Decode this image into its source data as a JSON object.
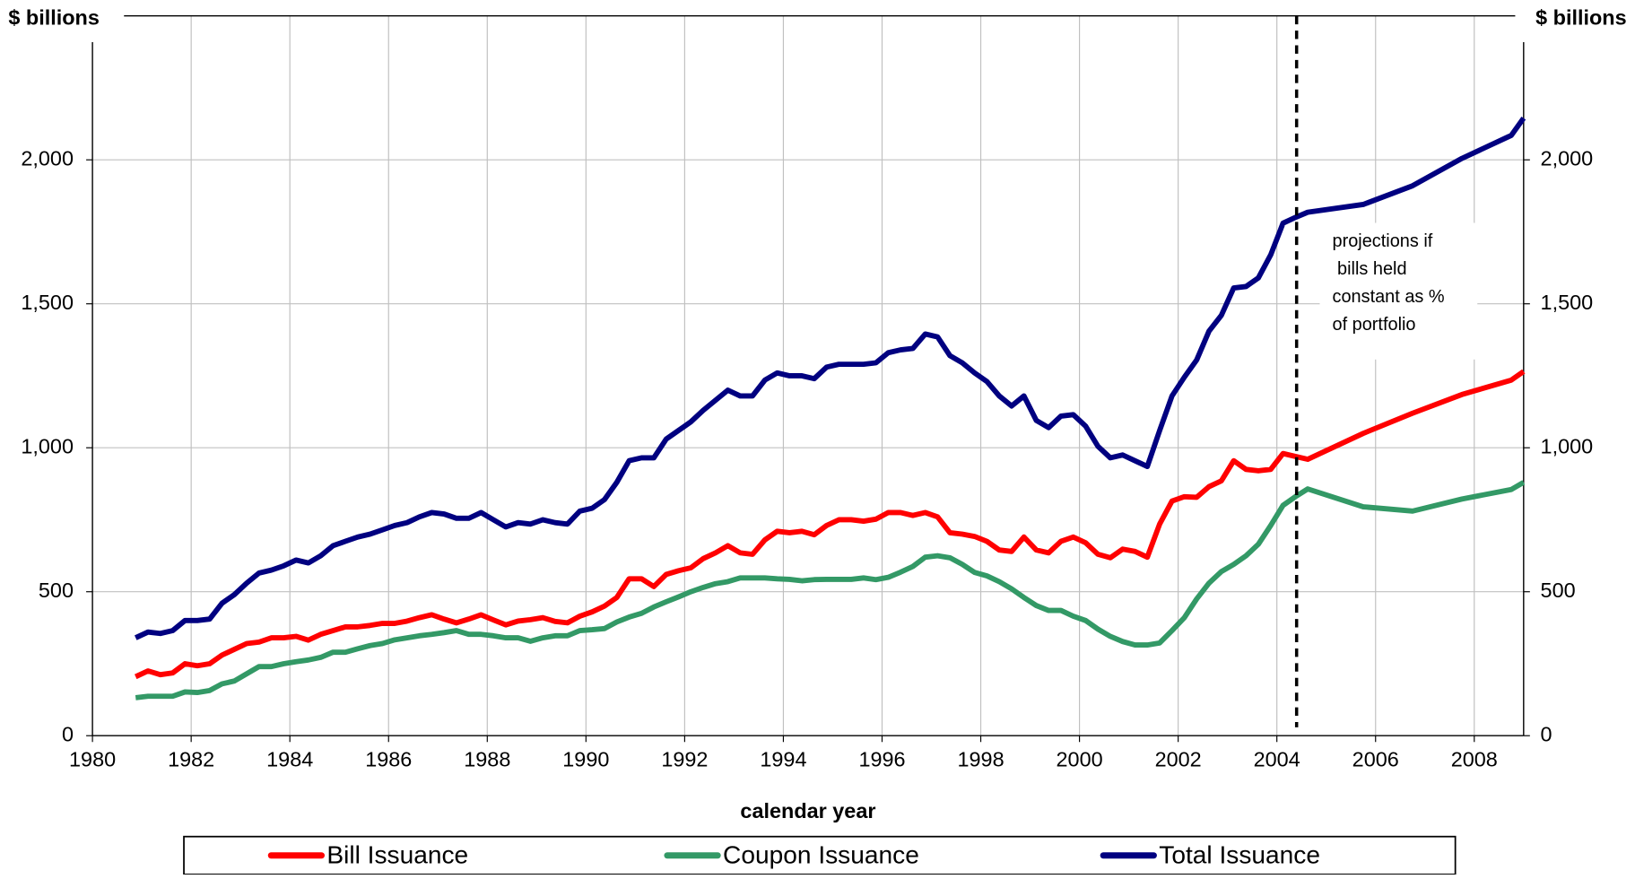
{
  "chart_data": {
    "type": "line",
    "x_label": "calendar year",
    "y_label": "$ billions",
    "y2_label": "$ billions",
    "xlim": [
      1980,
      2009
    ],
    "xticks": [
      1980,
      1982,
      1984,
      1986,
      1988,
      1990,
      1992,
      1994,
      1996,
      1998,
      2000,
      2002,
      2004,
      2006,
      2008
    ],
    "ylim": [
      0,
      2500
    ],
    "yticks": [
      0,
      {
        "value": 500,
        "label": "500"
      },
      {
        "value": 1000,
        "label": "1,000"
      },
      {
        "value": 1500,
        "label": "1,500"
      },
      {
        "value": 2000,
        "label": "2,000"
      }
    ],
    "y2lim": [
      0,
      2500
    ],
    "y2ticks": [
      0,
      {
        "value": 500,
        "label": "500"
      },
      {
        "value": 1000,
        "label": "1,000"
      },
      {
        "value": 1500,
        "label": "1,500"
      },
      {
        "value": 2000,
        "label": "2,000"
      }
    ],
    "grid": true,
    "legend": "bottom",
    "projection_start": 2004.4,
    "annotation": [
      "projections if",
      " bills held",
      "constant as %",
      "of portfolio"
    ],
    "x": [
      1980.875,
      1981.125,
      1981.375,
      1981.625,
      1981.875,
      1982.125,
      1982.375,
      1982.625,
      1982.875,
      1983.125,
      1983.375,
      1983.625,
      1983.875,
      1984.125,
      1984.375,
      1984.625,
      1984.875,
      1985.125,
      1985.375,
      1985.625,
      1985.875,
      1986.125,
      1986.375,
      1986.625,
      1986.875,
      1987.125,
      1987.375,
      1987.625,
      1987.875,
      1988.125,
      1988.375,
      1988.625,
      1988.875,
      1989.125,
      1989.375,
      1989.625,
      1989.875,
      1990.125,
      1990.375,
      1990.625,
      1990.875,
      1991.125,
      1991.375,
      1991.625,
      1991.875,
      1992.125,
      1992.375,
      1992.625,
      1992.875,
      1993.125,
      1993.375,
      1993.625,
      1993.875,
      1994.125,
      1994.375,
      1994.625,
      1994.875,
      1995.125,
      1995.375,
      1995.625,
      1995.875,
      1996.125,
      1996.375,
      1996.625,
      1996.875,
      1997.125,
      1997.375,
      1997.625,
      1997.875,
      1998.125,
      1998.375,
      1998.625,
      1998.875,
      1999.125,
      1999.375,
      1999.625,
      1999.875,
      2000.125,
      2000.375,
      2000.625,
      2000.875,
      2001.125,
      2001.375,
      2001.625,
      2001.875,
      2002.125,
      2002.375,
      2002.625,
      2002.875,
      2003.125,
      2003.375,
      2003.625,
      2003.875,
      2004.125,
      2004.375,
      2004.625,
      2005.75,
      2006.75,
      2007.75,
      2008.75,
      2009
    ],
    "series": [
      {
        "name": "Bill Issuance",
        "color": "#ff0000",
        "values": [
          205,
          225,
          212,
          218,
          250,
          243,
          250,
          280,
          300,
          320,
          325,
          340,
          340,
          345,
          332,
          352,
          365,
          378,
          378,
          383,
          390,
          390,
          398,
          410,
          420,
          405,
          392,
          405,
          420,
          402,
          385,
          398,
          403,
          410,
          397,
          392,
          415,
          430,
          450,
          480,
          545,
          545,
          518,
          560,
          573,
          583,
          615,
          635,
          660,
          635,
          630,
          680,
          710,
          705,
          710,
          698,
          730,
          750,
          750,
          745,
          752,
          775,
          775,
          765,
          775,
          760,
          705,
          700,
          692,
          675,
          645,
          640,
          690,
          645,
          635,
          675,
          690,
          670,
          630,
          618,
          648,
          640,
          620,
          735,
          815,
          830,
          828,
          865,
          885,
          955,
          925,
          920,
          925,
          980,
          970,
          960,
          1050,
          1120,
          1185,
          1235,
          1265
        ]
      },
      {
        "name": "Coupon Issuance",
        "color": "#339966",
        "values": [
          132,
          137,
          137,
          137,
          152,
          150,
          157,
          180,
          190,
          215,
          240,
          240,
          250,
          257,
          263,
          272,
          290,
          290,
          302,
          313,
          320,
          333,
          340,
          347,
          352,
          358,
          365,
          352,
          352,
          347,
          340,
          340,
          328,
          340,
          347,
          347,
          365,
          368,
          372,
          395,
          412,
          425,
          447,
          465,
          482,
          500,
          515,
          528,
          535,
          548,
          548,
          548,
          545,
          543,
          538,
          542,
          543,
          543,
          543,
          548,
          542,
          550,
          568,
          588,
          620,
          625,
          618,
          595,
          567,
          555,
          535,
          510,
          480,
          452,
          435,
          435,
          415,
          400,
          370,
          345,
          327,
          315,
          315,
          322,
          365,
          410,
          475,
          530,
          570,
          595,
          625,
          665,
          730,
          800,
          830,
          857,
          795,
          780,
          822,
          855,
          880
        ]
      },
      {
        "name": "Total Issuance",
        "color": "#000080",
        "values": [
          340,
          360,
          355,
          365,
          400,
          400,
          405,
          460,
          490,
          530,
          565,
          575,
          590,
          610,
          600,
          625,
          660,
          675,
          690,
          700,
          715,
          730,
          740,
          760,
          775,
          770,
          755,
          755,
          775,
          750,
          725,
          740,
          735,
          750,
          740,
          735,
          780,
          790,
          820,
          880,
          955,
          965,
          965,
          1030,
          1060,
          1090,
          1130,
          1165,
          1200,
          1180,
          1180,
          1235,
          1260,
          1250,
          1250,
          1240,
          1280,
          1290,
          1290,
          1290,
          1295,
          1330,
          1340,
          1345,
          1395,
          1385,
          1320,
          1295,
          1260,
          1230,
          1180,
          1145,
          1180,
          1095,
          1070,
          1110,
          1115,
          1075,
          1005,
          965,
          975,
          955,
          935,
          1060,
          1180,
          1245,
          1305,
          1405,
          1460,
          1555,
          1560,
          1590,
          1670,
          1780,
          1800,
          1818,
          1845,
          1910,
          2005,
          2085,
          2145
        ]
      }
    ]
  }
}
